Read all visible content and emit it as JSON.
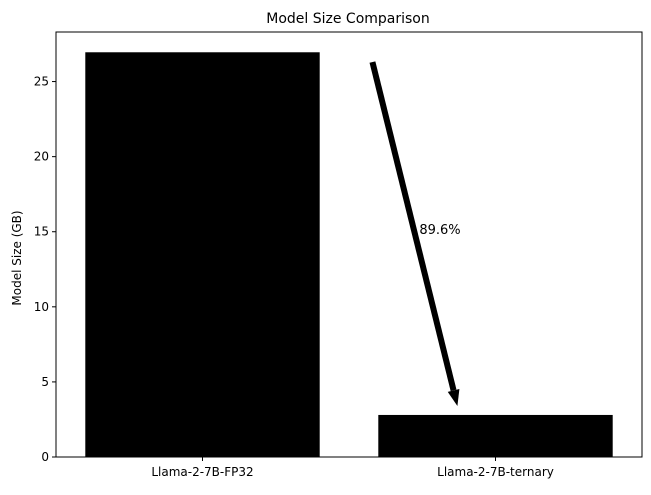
{
  "chart_data": {
    "type": "bar",
    "title": "Model Size Comparison",
    "xlabel": "",
    "ylabel": "Model Size (GB)",
    "categories": [
      "Llama-2-7B-FP32",
      "Llama-2-7B-ternary"
    ],
    "values": [
      26.95,
      2.8
    ],
    "ylim": [
      0,
      28.3
    ],
    "yticks": [
      0,
      5,
      10,
      15,
      20,
      25
    ],
    "grid": false,
    "bar_color": "#000000",
    "annotation": {
      "text": "89.6%",
      "arrow_from": {
        "category": "Llama-2-7B-FP32",
        "offset": 0.58,
        "y": 26.3
      },
      "arrow_to": {
        "category": "Llama-2-7B-ternary",
        "offset": -0.13,
        "y": 3.4
      },
      "text_at": {
        "category": "Llama-2-7B-FP32",
        "offset": 0.74,
        "y": 15.1
      },
      "color": "#000000"
    }
  }
}
